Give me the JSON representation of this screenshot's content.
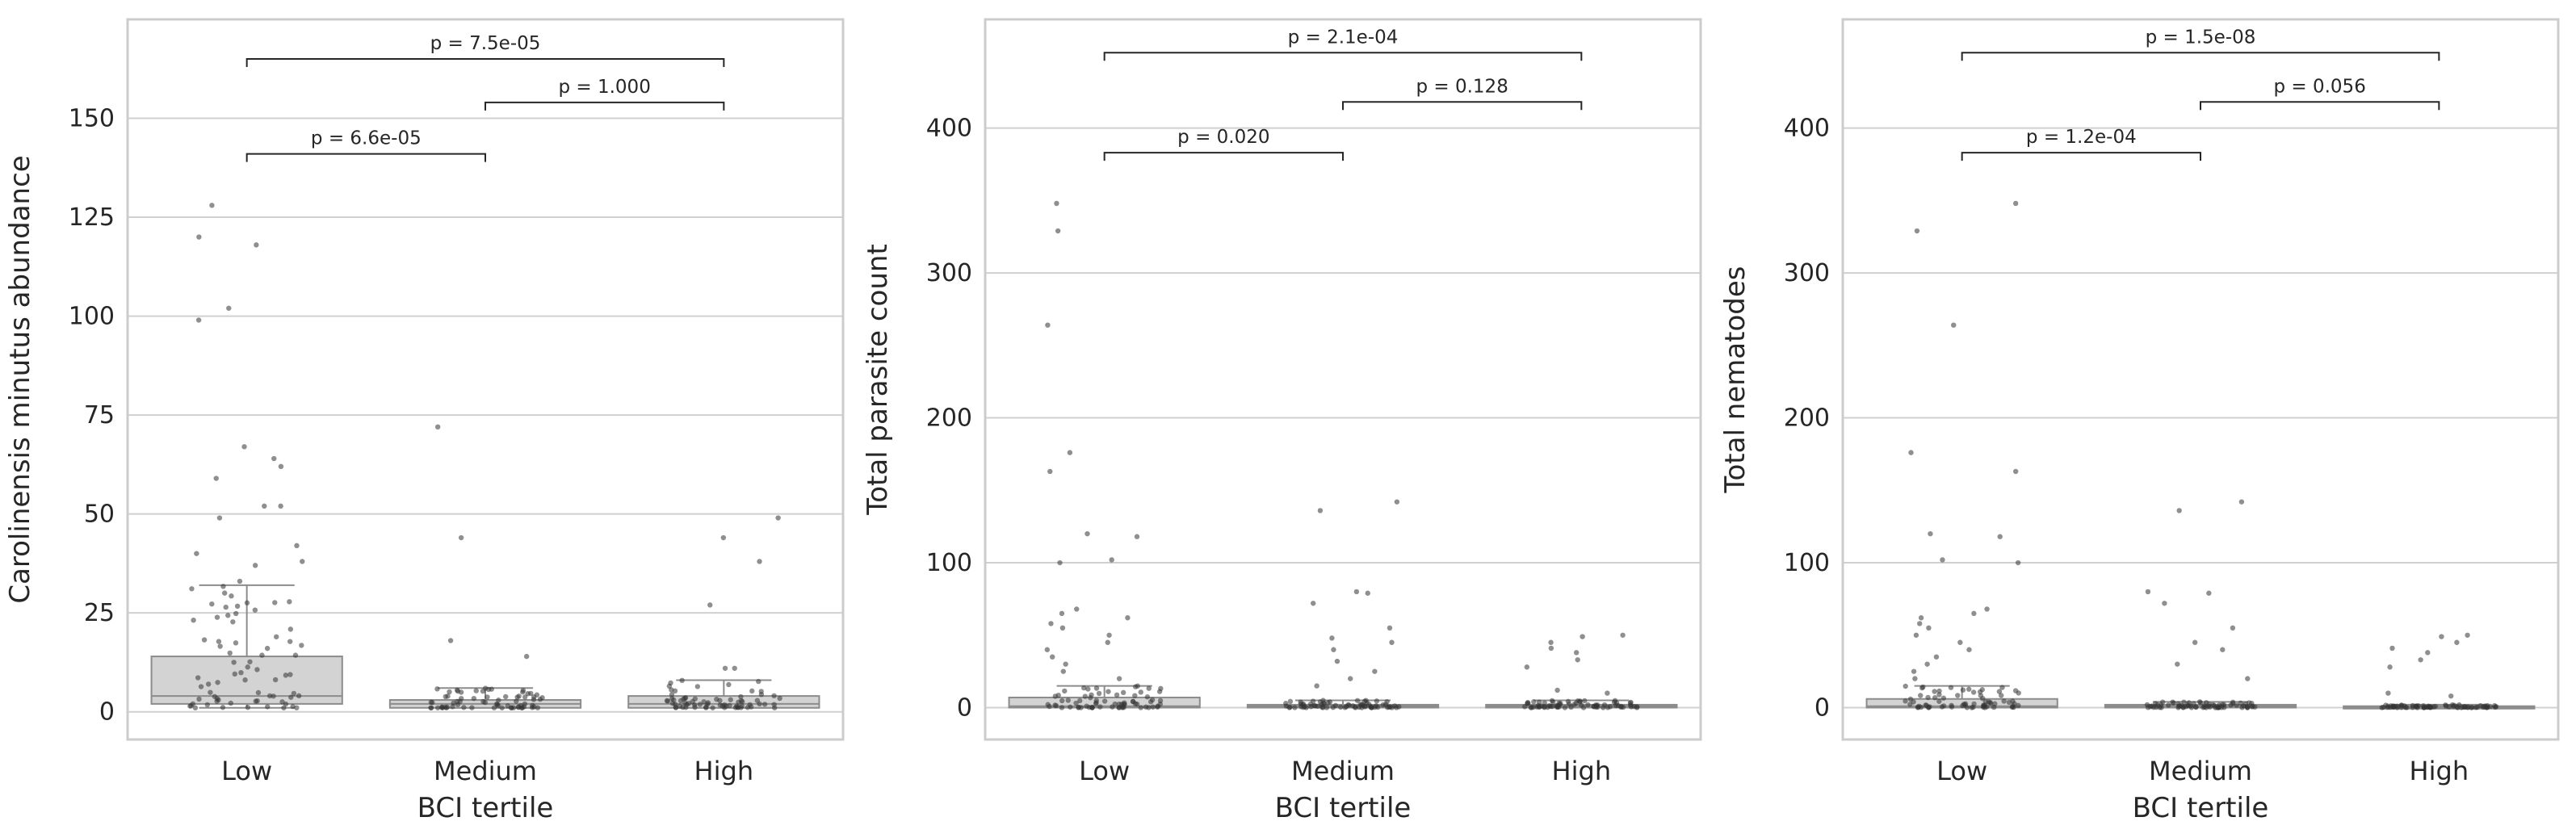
{
  "chart_data": [
    {
      "type": "box",
      "xlabel": "BCI tertile",
      "ylabel": "Carolinensis minutus abundance",
      "categories": [
        "Low",
        "Medium",
        "High"
      ],
      "ylim": [
        -7,
        175
      ],
      "yticks": [
        0,
        25,
        50,
        75,
        100,
        125,
        150
      ],
      "grid": "horizontal",
      "boxes": [
        {
          "category": "Low",
          "whislo": 1,
          "q1": 2,
          "median": 4,
          "q3": 14,
          "whishi": 32
        },
        {
          "category": "Medium",
          "whislo": 1,
          "q1": 1,
          "median": 2,
          "q3": 3,
          "whishi": 6
        },
        {
          "category": "High",
          "whislo": 1,
          "q1": 1,
          "median": 2,
          "q3": 4,
          "whishi": 8
        }
      ],
      "outliers": [
        {
          "category": "Low",
          "values": [
            128,
            120,
            118,
            102,
            99,
            67,
            64,
            62,
            59,
            52,
            52,
            49,
            42,
            40,
            38,
            37,
            33
          ]
        },
        {
          "category": "Medium",
          "values": [
            72,
            44,
            18,
            14
          ]
        },
        {
          "category": "High",
          "values": [
            49,
            44,
            38,
            27,
            11,
            11
          ]
        }
      ],
      "comparisons": [
        {
          "pair": [
            "Low",
            "High"
          ],
          "label": "p = 7.5e-05",
          "level": 165
        },
        {
          "pair": [
            "Medium",
            "High"
          ],
          "label": "p = 1.000",
          "level": 154
        },
        {
          "pair": [
            "Low",
            "Medium"
          ],
          "label": "p = 6.6e-05",
          "level": 141
        }
      ]
    },
    {
      "type": "box",
      "xlabel": "BCI tertile",
      "ylabel": "Total parasite count",
      "categories": [
        "Low",
        "Medium",
        "High"
      ],
      "ylim": [
        -22,
        475
      ],
      "yticks": [
        0,
        100,
        200,
        300,
        400
      ],
      "grid": "horizontal",
      "boxes": [
        {
          "category": "Low",
          "whislo": 0,
          "q1": 0,
          "median": 1,
          "q3": 7,
          "whishi": 15
        },
        {
          "category": "Medium",
          "whislo": 0,
          "q1": 0,
          "median": 1,
          "q3": 2,
          "whishi": 5
        },
        {
          "category": "High",
          "whislo": 0,
          "q1": 0,
          "median": 1,
          "q3": 2,
          "whishi": 5
        }
      ],
      "outliers": [
        {
          "category": "Low",
          "values": [
            348,
            329,
            264,
            176,
            163,
            120,
            118,
            102,
            100,
            68,
            65,
            62,
            58,
            55,
            50,
            45,
            40,
            35,
            30,
            25,
            20
          ]
        },
        {
          "category": "Medium",
          "values": [
            142,
            136,
            80,
            79,
            72,
            55,
            48,
            45,
            40,
            32,
            25,
            20,
            15
          ]
        },
        {
          "category": "High",
          "values": [
            50,
            49,
            45,
            41,
            38,
            33,
            28,
            12,
            10
          ]
        }
      ],
      "comparisons": [
        {
          "pair": [
            "Low",
            "High"
          ],
          "label": "p = 2.1e-04",
          "level": 452
        },
        {
          "pair": [
            "Medium",
            "High"
          ],
          "label": "p = 0.128",
          "level": 418
        },
        {
          "pair": [
            "Low",
            "Medium"
          ],
          "label": "p = 0.020",
          "level": 383
        }
      ]
    },
    {
      "type": "box",
      "xlabel": "BCI tertile",
      "ylabel": "Total nematodes",
      "categories": [
        "Low",
        "Medium",
        "High"
      ],
      "ylim": [
        -22,
        475
      ],
      "yticks": [
        0,
        100,
        200,
        300,
        400
      ],
      "grid": "horizontal",
      "boxes": [
        {
          "category": "Low",
          "whislo": 0,
          "q1": 0,
          "median": 1,
          "q3": 6,
          "whishi": 15
        },
        {
          "category": "Medium",
          "whislo": 0,
          "q1": 0,
          "median": 1,
          "q3": 2,
          "whishi": 4
        },
        {
          "category": "High",
          "whislo": 0,
          "q1": 0,
          "median": 0,
          "q3": 1,
          "whishi": 2
        }
      ],
      "outliers": [
        {
          "category": "Low",
          "values": [
            348,
            329,
            264,
            176,
            163,
            120,
            118,
            102,
            100,
            68,
            65,
            62,
            58,
            55,
            50,
            45,
            40,
            35,
            30,
            25,
            20
          ]
        },
        {
          "category": "Medium",
          "values": [
            142,
            136,
            80,
            79,
            72,
            55,
            45,
            40,
            30,
            20
          ]
        },
        {
          "category": "High",
          "values": [
            50,
            49,
            45,
            41,
            38,
            33,
            28,
            10,
            8
          ]
        }
      ],
      "comparisons": [
        {
          "pair": [
            "Low",
            "High"
          ],
          "label": "p = 1.5e-08",
          "level": 452
        },
        {
          "pair": [
            "Medium",
            "High"
          ],
          "label": "p = 0.056",
          "level": 418
        },
        {
          "pair": [
            "Low",
            "Medium"
          ],
          "label": "p = 1.2e-04",
          "level": 383
        }
      ]
    }
  ],
  "colors": {
    "box_fill": "#d3d3d3",
    "box_edge": "#8c8c8c",
    "grid": "#d0d0d0",
    "axes_edge": "#cccccc",
    "text": "#262626",
    "points": "#333333",
    "bracket": "#262626"
  }
}
